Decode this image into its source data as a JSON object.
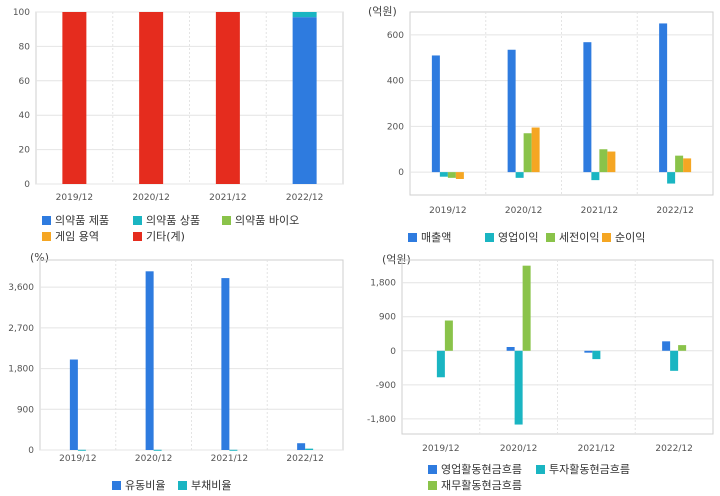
{
  "chart_data": [
    {
      "type": "bar",
      "stacked": true,
      "title": "",
      "unit": "",
      "categories": [
        "2019/12",
        "2020/12",
        "2021/12",
        "2022/12"
      ],
      "ylim": [
        0,
        100
      ],
      "yticks": [
        0,
        20,
        40,
        60,
        80,
        100
      ],
      "series": [
        {
          "name": "의약품 제품",
          "color": "#2e7bdf",
          "values": [
            0,
            0,
            0,
            97
          ]
        },
        {
          "name": "의약품 상품",
          "color": "#1ab5c2",
          "values": [
            0,
            0,
            0,
            3
          ]
        },
        {
          "name": "의약품 바이오",
          "color": "#8ac34a",
          "values": [
            0,
            0,
            0,
            0
          ]
        },
        {
          "name": "게임 용역",
          "color": "#f5a623",
          "values": [
            0,
            0,
            0,
            0
          ]
        },
        {
          "name": "기타(계)",
          "color": "#e52c1e",
          "values": [
            100,
            100,
            100,
            0
          ]
        }
      ],
      "legend_placement": "bottom"
    },
    {
      "type": "bar",
      "title": "",
      "unit": "(억원)",
      "categories": [
        "2019/12",
        "2020/12",
        "2021/12",
        "2022/12"
      ],
      "ylim": [
        -100,
        700
      ],
      "yticks": [
        0,
        200,
        400,
        600
      ],
      "series": [
        {
          "name": "매출액",
          "color": "#2e7bdf",
          "values": [
            510,
            535,
            568,
            650
          ]
        },
        {
          "name": "영업이익",
          "color": "#1ab5c2",
          "values": [
            -20,
            -25,
            -35,
            -50
          ]
        },
        {
          "name": "세전이익",
          "color": "#8ac34a",
          "values": [
            -25,
            170,
            100,
            72
          ]
        },
        {
          "name": "순이익",
          "color": "#f5a623",
          "values": [
            -30,
            195,
            90,
            60
          ]
        }
      ],
      "legend_placement": "bottom"
    },
    {
      "type": "bar",
      "title": "",
      "unit": "(%)",
      "categories": [
        "2019/12",
        "2020/12",
        "2021/12",
        "2022/12"
      ],
      "ylim": [
        0,
        4200
      ],
      "yticks": [
        0,
        900,
        1800,
        2700,
        3600
      ],
      "ytick_labels": [
        "0",
        "900",
        "1,800",
        "2,700",
        "3,600"
      ],
      "series": [
        {
          "name": "유동비율",
          "color": "#2e7bdf",
          "values": [
            2000,
            3950,
            3800,
            150
          ]
        },
        {
          "name": "부채비율",
          "color": "#1ab5c2",
          "values": [
            5,
            5,
            5,
            30
          ]
        }
      ],
      "legend_placement": "bottom"
    },
    {
      "type": "bar",
      "title": "",
      "unit": "(억원)",
      "categories": [
        "2019/12",
        "2020/12",
        "2021/12",
        "2022/12"
      ],
      "ylim": [
        -2200,
        2400
      ],
      "yticks": [
        -1800,
        -900,
        0,
        900,
        1800
      ],
      "ytick_labels": [
        "-1,800",
        "-900",
        "0",
        "900",
        "1,800"
      ],
      "series": [
        {
          "name": "영업활동현금흐름",
          "color": "#2e7bdf",
          "values": [
            0,
            100,
            -50,
            250
          ]
        },
        {
          "name": "투자활동현금흐름",
          "color": "#1ab5c2",
          "values": [
            -700,
            -1950,
            -220,
            -530
          ]
        },
        {
          "name": "재무활동현금흐름",
          "color": "#8ac34a",
          "values": [
            800,
            2250,
            0,
            150
          ]
        }
      ],
      "legend_placement": "bottom"
    }
  ]
}
